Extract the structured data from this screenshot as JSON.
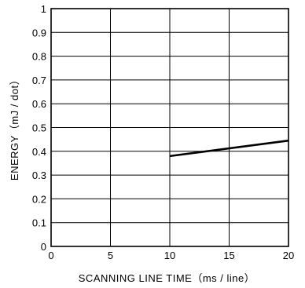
{
  "chart_data": {
    "type": "line",
    "title": "",
    "xlabel": "SCANNING LINE TIME（ms / line）",
    "ylabel": "ENERGY（mJ / dot）",
    "xlim": [
      0,
      20
    ],
    "ylim": [
      0,
      1
    ],
    "x_ticks": [
      0,
      5,
      10,
      15,
      20
    ],
    "y_ticks": [
      0,
      0.1,
      0.2,
      0.3,
      0.4,
      0.5,
      0.6,
      0.7,
      0.8,
      0.9,
      1
    ],
    "grid": true,
    "legend": "none",
    "series": [
      {
        "x": [
          10,
          20
        ],
        "values": [
          0.38,
          0.445
        ],
        "color": "#000000"
      }
    ]
  }
}
